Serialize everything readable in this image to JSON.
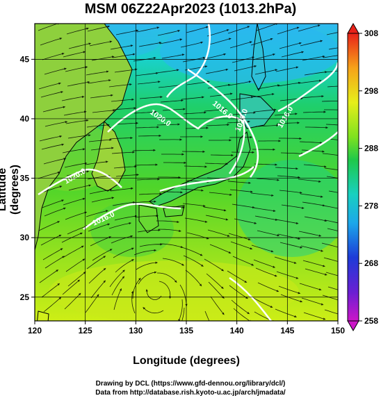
{
  "title": "MSM 06Z22Apr2023 (1013.2hPa)",
  "axes": {
    "xlabel": "Longitude (degrees)",
    "ylabel": "Latitude  (degrees)",
    "xlim": [
      120,
      150
    ],
    "ylim": [
      23,
      48
    ],
    "xticks": [
      "120",
      "125",
      "130",
      "135",
      "140",
      "145",
      "150"
    ],
    "yticks": [
      "25",
      "30",
      "35",
      "40",
      "45"
    ]
  },
  "colorbar": {
    "min": 258,
    "max": 308,
    "labels": [
      "308",
      "298",
      "288",
      "278",
      "268",
      "258"
    ]
  },
  "contour_labels": [
    "1020.0",
    "1016.0",
    "1016.0",
    "1020.0",
    "1016.0",
    "1020.0"
  ],
  "credits": {
    "line1": "Drawing by DCL (https://www.gfd-dennou.org/library/dcl/)",
    "line2": "Data from http://database.rish.kyoto-u.ac.jp/arch/jmadata/"
  },
  "colors": {
    "coast": "#000000",
    "isobar": "#ffffff",
    "streamline": "#000000"
  }
}
